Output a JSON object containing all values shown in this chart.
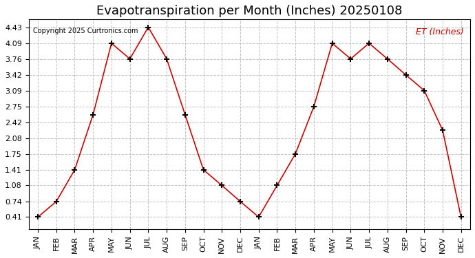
{
  "title": "Evapotranspiration per Month (Inches) 20250108",
  "copyright": "Copyright 2025 Curtronics.com",
  "legend_label": "ET (Inches)",
  "months": [
    "JAN",
    "FEB",
    "MAR",
    "APR",
    "MAY",
    "JUN",
    "JUL",
    "AUG",
    "SEP",
    "OCT",
    "NOV",
    "DEC",
    "JAN",
    "FEB",
    "MAR",
    "APR",
    "MAY",
    "JUN",
    "JUL",
    "AUG",
    "SEP",
    "OCT",
    "NOV",
    "DEC"
  ],
  "values": [
    0.41,
    0.74,
    1.41,
    2.58,
    4.09,
    3.76,
    4.43,
    3.76,
    2.58,
    1.41,
    1.08,
    0.74,
    0.41,
    1.08,
    1.75,
    2.75,
    4.09,
    3.76,
    4.09,
    3.76,
    3.42,
    3.09,
    2.25,
    0.41
  ],
  "yticks": [
    0.41,
    0.74,
    1.08,
    1.41,
    1.75,
    2.08,
    2.42,
    2.75,
    3.09,
    3.42,
    3.76,
    4.09,
    4.43
  ],
  "line_color": "#cc0000",
  "marker": "+",
  "marker_color": "#000000",
  "grid_color": "#bbbbbb",
  "background_color": "#ffffff",
  "title_fontsize": 13,
  "tick_fontsize": 8,
  "copyright_fontsize": 7,
  "legend_fontsize": 9,
  "legend_color": "#cc0000",
  "ylim_min": 0.15,
  "ylim_max": 4.6
}
